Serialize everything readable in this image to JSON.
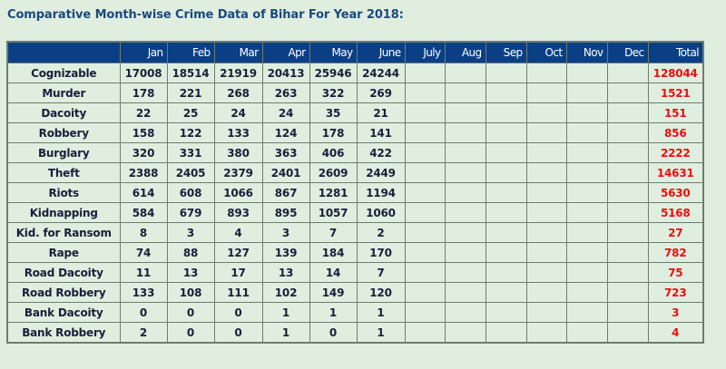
{
  "title": "Comparative Month-wise Crime Data of Bihar For Year 2018:",
  "table": {
    "headers": [
      "",
      "Jan",
      "Feb",
      "Mar",
      "Apr",
      "May",
      "June",
      "July",
      "Aug",
      "Sep",
      "Oct",
      "Nov",
      "Dec",
      "Total"
    ],
    "rows": [
      {
        "label": "Cognizable",
        "values": [
          "17008",
          "18514",
          "21919",
          "20413",
          "25946",
          "24244",
          "",
          "",
          "",
          "",
          "",
          ""
        ],
        "total": "128044"
      },
      {
        "label": "Murder",
        "values": [
          "178",
          "221",
          "268",
          "263",
          "322",
          "269",
          "",
          "",
          "",
          "",
          "",
          ""
        ],
        "total": "1521"
      },
      {
        "label": "Dacoity",
        "values": [
          "22",
          "25",
          "24",
          "24",
          "35",
          "21",
          "",
          "",
          "",
          "",
          "",
          ""
        ],
        "total": "151"
      },
      {
        "label": "Robbery",
        "values": [
          "158",
          "122",
          "133",
          "124",
          "178",
          "141",
          "",
          "",
          "",
          "",
          "",
          ""
        ],
        "total": "856"
      },
      {
        "label": "Burglary",
        "values": [
          "320",
          "331",
          "380",
          "363",
          "406",
          "422",
          "",
          "",
          "",
          "",
          "",
          ""
        ],
        "total": "2222"
      },
      {
        "label": "Theft",
        "values": [
          "2388",
          "2405",
          "2379",
          "2401",
          "2609",
          "2449",
          "",
          "",
          "",
          "",
          "",
          ""
        ],
        "total": "14631"
      },
      {
        "label": "Riots",
        "values": [
          "614",
          "608",
          "1066",
          "867",
          "1281",
          "1194",
          "",
          "",
          "",
          "",
          "",
          ""
        ],
        "total": "5630"
      },
      {
        "label": "Kidnapping",
        "values": [
          "584",
          "679",
          "893",
          "895",
          "1057",
          "1060",
          "",
          "",
          "",
          "",
          "",
          ""
        ],
        "total": "5168"
      },
      {
        "label": "Kid. for Ransom",
        "values": [
          "8",
          "3",
          "4",
          "3",
          "7",
          "2",
          "",
          "",
          "",
          "",
          "",
          ""
        ],
        "total": "27"
      },
      {
        "label": "Rape",
        "values": [
          "74",
          "88",
          "127",
          "139",
          "184",
          "170",
          "",
          "",
          "",
          "",
          "",
          ""
        ],
        "total": "782"
      },
      {
        "label": "Road Dacoity",
        "values": [
          "11",
          "13",
          "17",
          "13",
          "14",
          "7",
          "",
          "",
          "",
          "",
          "",
          ""
        ],
        "total": "75"
      },
      {
        "label": "Road Robbery",
        "values": [
          "133",
          "108",
          "111",
          "102",
          "149",
          "120",
          "",
          "",
          "",
          "",
          "",
          ""
        ],
        "total": "723"
      },
      {
        "label": "Bank Dacoity",
        "values": [
          "0",
          "0",
          "0",
          "1",
          "1",
          "1",
          "",
          "",
          "",
          "",
          "",
          ""
        ],
        "total": "3"
      },
      {
        "label": "Bank Robbery",
        "values": [
          "2",
          "0",
          "0",
          "1",
          "0",
          "1",
          "",
          "",
          "",
          "",
          "",
          ""
        ],
        "total": "4"
      }
    ]
  },
  "colors": {
    "header_bg": "#0b3f85",
    "total_text": "#e81010",
    "title": "#1b4a7c",
    "page_bg": "#e0eee0"
  }
}
